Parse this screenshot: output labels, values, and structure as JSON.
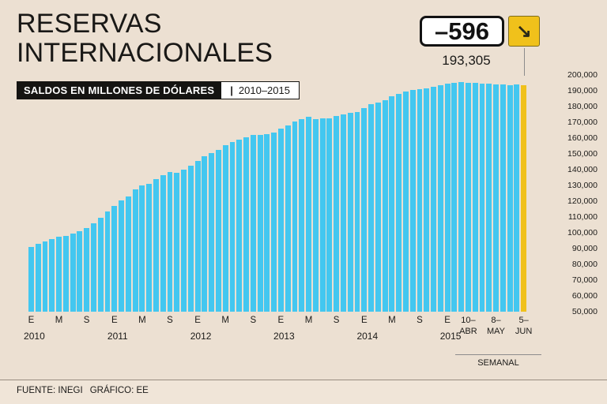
{
  "page": {
    "title_line1": "RESERVAS",
    "title_line2": "INTERNACIONALES",
    "subtitle_label": "SALDOS EN MILLONES DE DÓLARES",
    "subtitle_sep": "|",
    "subtitle_period": "2010–2015",
    "badge_value": "–596",
    "badge_arrow": "↘",
    "peak_label": "193,305",
    "footer_source": "FUENTE: INEGI",
    "footer_credit": "GRÁFICO: EE"
  },
  "chart_data": {
    "type": "bar",
    "title": "RESERVAS INTERNACIONALES",
    "subtitle": "SALDOS EN MILLONES DE DÓLARES | 2010–2015",
    "ylabel": "",
    "ylim": [
      50000,
      200000
    ],
    "ytick_step": 10000,
    "grid": false,
    "bar_color": "#43c7f0",
    "highlight_color": "#f0c11b",
    "annotations": {
      "latest_value": 193305,
      "latest_value_label": "193,305",
      "weekly_change": -596,
      "weekly_change_label": "–596"
    },
    "x_axis": {
      "month_letters": [
        {
          "i": 0,
          "t": "E"
        },
        {
          "i": 4,
          "t": "M"
        },
        {
          "i": 8,
          "t": "S"
        },
        {
          "i": 12,
          "t": "E"
        },
        {
          "i": 16,
          "t": "M"
        },
        {
          "i": 20,
          "t": "S"
        },
        {
          "i": 24,
          "t": "E"
        },
        {
          "i": 28,
          "t": "M"
        },
        {
          "i": 32,
          "t": "S"
        },
        {
          "i": 36,
          "t": "E"
        },
        {
          "i": 40,
          "t": "M"
        },
        {
          "i": 44,
          "t": "S"
        },
        {
          "i": 48,
          "t": "E"
        },
        {
          "i": 52,
          "t": "M"
        },
        {
          "i": 56,
          "t": "S"
        },
        {
          "i": 60,
          "t": "E"
        }
      ],
      "years": [
        {
          "i": 0,
          "t": "2010"
        },
        {
          "i": 12,
          "t": "2011"
        },
        {
          "i": 24,
          "t": "2012"
        },
        {
          "i": 36,
          "t": "2013"
        },
        {
          "i": 48,
          "t": "2014"
        },
        {
          "i": 60,
          "t": "2015"
        }
      ],
      "weekly": [
        {
          "i": 63,
          "l1": "10–",
          "l2": "ABR"
        },
        {
          "i": 67,
          "l1": "8–",
          "l2": "MAY"
        },
        {
          "i": 71,
          "l1": "5–",
          "l2": "JUN"
        }
      ],
      "weekly_caption": "SEMANAL"
    },
    "series": [
      {
        "name": "Reservas internacionales (millones de dólares)",
        "values": [
          91000,
          92800,
          94300,
          95800,
          97400,
          97900,
          99300,
          100900,
          103100,
          106000,
          109500,
          113600,
          116800,
          120300,
          123200,
          127600,
          129800,
          131100,
          133800,
          136300,
          138300,
          137900,
          140200,
          142500,
          145700,
          148600,
          150600,
          152700,
          155600,
          157300,
          158800,
          160700,
          161900,
          161800,
          162300,
          163600,
          166200,
          168200,
          170400,
          172100,
          173300,
          171900,
          172300,
          172700,
          173800,
          175200,
          176100,
          176600,
          179100,
          181300,
          182700,
          184200,
          186300,
          188200,
          189700,
          190700,
          191100,
          191600,
          192600,
          193300,
          194700,
          195200,
          195400,
          195100,
          194900,
          194700,
          194400,
          194100,
          193900,
          193700,
          193901,
          193305
        ]
      }
    ]
  }
}
